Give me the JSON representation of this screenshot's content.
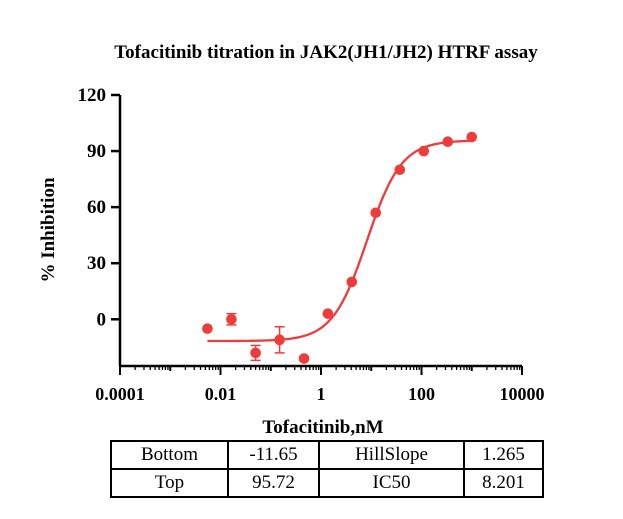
{
  "chart_data": {
    "type": "scatter",
    "title": "Tofacitinib titration in JAK2(JH1/JH2) HTRF assay",
    "xlabel": "Tofacitinib,nM",
    "ylabel": "% Inhibition",
    "x_scale": "log",
    "xlim": [
      0.0001,
      10000
    ],
    "ylim": [
      -25,
      120
    ],
    "x_ticks": [
      0.0001,
      0.01,
      1,
      100,
      10000
    ],
    "x_tick_labels": [
      "0.0001",
      "0.01",
      "1",
      "100",
      "10000"
    ],
    "y_ticks": [
      0,
      30,
      60,
      90,
      120
    ],
    "y_tick_labels": [
      "0",
      "30",
      "60",
      "90",
      "120"
    ],
    "color": "#ee3b3b",
    "series": [
      {
        "points": [
          {
            "x": 0.0055,
            "y": -5,
            "err": 0
          },
          {
            "x": 0.0165,
            "y": 0,
            "err": 3
          },
          {
            "x": 0.05,
            "y": -18,
            "err": 4
          },
          {
            "x": 0.15,
            "y": -11,
            "err": 7
          },
          {
            "x": 0.46,
            "y": -21,
            "err": 0
          },
          {
            "x": 1.37,
            "y": 3,
            "err": 0
          },
          {
            "x": 4.1,
            "y": 20,
            "err": 0
          },
          {
            "x": 12.3,
            "y": 57,
            "err": 0
          },
          {
            "x": 37,
            "y": 80,
            "err": 0
          },
          {
            "x": 111,
            "y": 90,
            "err": 0
          },
          {
            "x": 333,
            "y": 95,
            "err": 0
          },
          {
            "x": 1000,
            "y": 97.5,
            "err": 0
          }
        ]
      }
    ],
    "fit": {
      "model": "4PL",
      "bottom": -11.65,
      "top": 95.72,
      "hillslope": 1.265,
      "ic50": 8.201,
      "x_range": [
        0.0055,
        1000
      ]
    },
    "grid": false
  },
  "params_table": {
    "rows": [
      [
        "Bottom",
        "-11.65",
        "HillSlope",
        "1.265"
      ],
      [
        "Top",
        "95.72",
        "IC50",
        "8.201"
      ]
    ]
  }
}
